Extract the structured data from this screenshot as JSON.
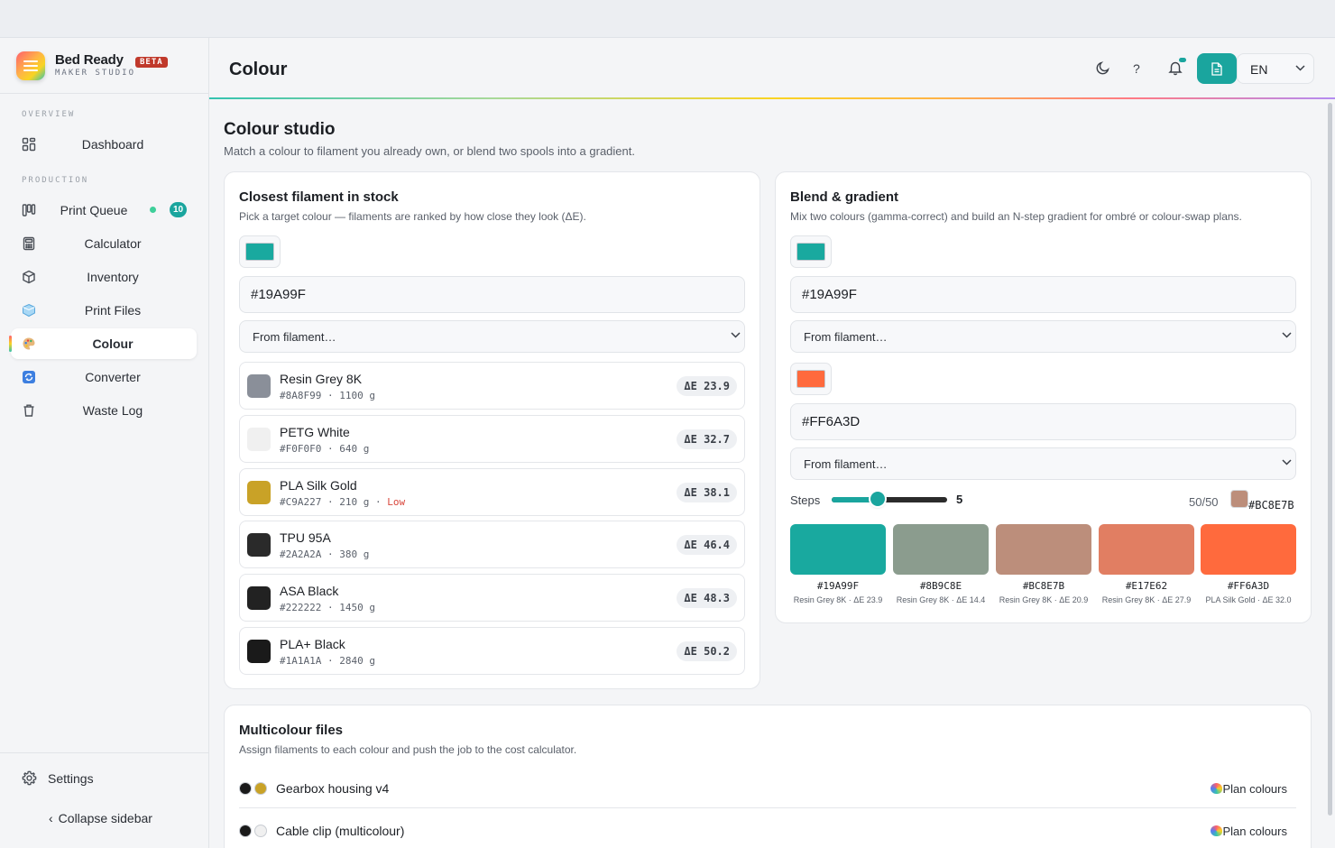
{
  "brand": {
    "name": "Bed Ready",
    "badge": "BETA",
    "subtitle": "MAKER STUDIO"
  },
  "sidebar": {
    "sections": [
      "OVERVIEW",
      "PRODUCTION"
    ],
    "items": [
      {
        "label": "Dashboard",
        "icon": "dashboard-grid-icon"
      },
      {
        "label": "Print Queue",
        "icon": "kanban-icon",
        "badge": "10"
      },
      {
        "label": "Calculator",
        "icon": "calculator-icon"
      },
      {
        "label": "Inventory",
        "icon": "box-icon"
      },
      {
        "label": "Print Files",
        "icon": "ice-cube-icon"
      },
      {
        "label": "Colour",
        "icon": "palette-icon",
        "active": true
      },
      {
        "label": "Converter",
        "icon": "refresh-icon"
      },
      {
        "label": "Waste Log",
        "icon": "trash-icon"
      }
    ],
    "settings_label": "Settings",
    "collapse_label": "Collapse sidebar",
    "collapse_chevron": "‹"
  },
  "header": {
    "title": "Colour",
    "help_glyph": "?",
    "language": "EN"
  },
  "page": {
    "title": "Colour studio",
    "subtitle": "Match a colour to filament you already own, or blend two spools into a gradient."
  },
  "closest": {
    "title": "Closest filament in stock",
    "subtitle": "Pick a target colour — filaments are ranked by how close they look (ΔE).",
    "swatch": "#19A99F",
    "hex_value": "#19A99F",
    "select_label": "From filament…",
    "results": [
      {
        "name": "Resin Grey 8K",
        "hex": "#8A8F99",
        "weight": "1100 g",
        "delta": "ΔE 23.9",
        "low": ""
      },
      {
        "name": "PETG White",
        "hex": "#F0F0F0",
        "weight": "640 g",
        "delta": "ΔE 32.7",
        "low": ""
      },
      {
        "name": "PLA Silk Gold",
        "hex": "#C9A227",
        "weight": "210 g",
        "delta": "ΔE 38.1",
        "low": "Low"
      },
      {
        "name": "TPU 95A",
        "hex": "#2A2A2A",
        "weight": "380 g",
        "delta": "ΔE 46.4",
        "low": ""
      },
      {
        "name": "ASA Black",
        "hex": "#222222",
        "weight": "1450 g",
        "delta": "ΔE 48.3",
        "low": ""
      },
      {
        "name": "PLA+ Black",
        "hex": "#1A1A1A",
        "weight": "2840 g",
        "delta": "ΔE 50.2",
        "low": ""
      }
    ]
  },
  "blend": {
    "title": "Blend & gradient",
    "subtitle": "Mix two colours (gamma-correct) and build an N-step gradient for ombré or colour-swap plans.",
    "colour_a": {
      "swatch": "#19A99F",
      "hex_value": "#19A99F",
      "select_label": "From filament…"
    },
    "colour_b": {
      "swatch": "#FF6A3D",
      "hex_value": "#FF6A3D",
      "select_label": "From filament…"
    },
    "steps_label": "Steps",
    "steps_value": "5",
    "steps_fraction": 0.4,
    "mix_label": "50/50",
    "mix_swatch": "#BC8E7B",
    "mix_hex": "#BC8E7B",
    "gradient": [
      {
        "hex": "#19A99F",
        "note": "Resin Grey 8K · ΔE 23.9"
      },
      {
        "hex": "#8B9C8E",
        "note": "Resin Grey 8K · ΔE 14.4"
      },
      {
        "hex": "#BC8E7B",
        "note": "Resin Grey 8K · ΔE 20.9"
      },
      {
        "hex": "#E17E62",
        "note": "Resin Grey 8K · ΔE 27.9"
      },
      {
        "hex": "#FF6A3D",
        "note": "PLA Silk Gold · ΔE 32.0"
      }
    ]
  },
  "multicolour": {
    "title": "Multicolour files",
    "subtitle": "Assign filaments to each colour and push the job to the cost calculator.",
    "files": [
      {
        "name": "Gearbox housing v4",
        "colors": [
          "#1A1A1A",
          "#C9A227"
        ],
        "action": "Plan colours"
      },
      {
        "name": "Cable clip (multicolour)",
        "colors": [
          "#1A1A1A",
          "#F0F0F0"
        ],
        "action": "Plan colours"
      }
    ]
  },
  "colors": {
    "accent": "#1AA59E",
    "low_stock": "#D9463B",
    "beta": "#C0392B"
  }
}
